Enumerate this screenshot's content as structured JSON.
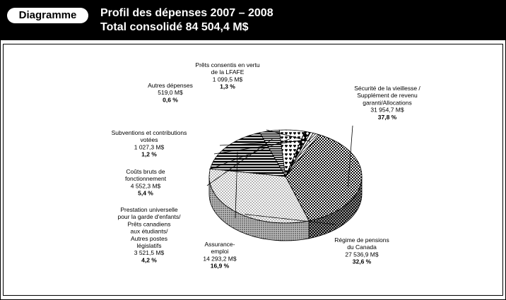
{
  "header": {
    "tag": "Diagramme",
    "title_line1": "Profil des dépenses 2007 – 2008",
    "title_line2": "Total consolidé 84 504,4 M$"
  },
  "chart_data": {
    "type": "pie",
    "title": "Profil des dépenses 2007 – 2008",
    "subtitle": "Total consolidé 84 504,4 M$",
    "unit": "M$",
    "slices": [
      {
        "label_lines": [
          "Sécurité de la vieillesse /",
          "Supplément de revenu",
          "garanti/Allocations"
        ],
        "value_text": "31 954,7 M$",
        "pct_text": "37,8 %",
        "value": 31954.7,
        "pct": 37.8,
        "pattern": "checker"
      },
      {
        "label_lines": [
          "Régime de pensions",
          "du Canada"
        ],
        "value_text": "27 536,9 M$",
        "pct_text": "32,6 %",
        "value": 27536.9,
        "pct": 32.6,
        "pattern": "dots"
      },
      {
        "label_lines": [
          "Assurance-",
          "emploi"
        ],
        "value_text": "14 293,2 M$",
        "pct_text": "16,9 %",
        "value": 14293.2,
        "pct": 16.9,
        "pattern": "hstripes"
      },
      {
        "label_lines": [
          "Prestation universelle",
          "pour la garde d'enfants/",
          "Prêts canadiens",
          "aux étudiants/",
          "Autres postes",
          "législatifs"
        ],
        "value_text": "3 521,5 M$",
        "pct_text": "4,2 %",
        "value": 3521.5,
        "pct": 4.2,
        "pattern": "hstripes-fine"
      },
      {
        "label_lines": [
          "Coûts bruts de",
          "fonctionnement"
        ],
        "value_text": "4 552,3 M$",
        "pct_text": "5,4 %",
        "value": 4552.3,
        "pct": 5.4,
        "pattern": "hearts"
      },
      {
        "label_lines": [
          "Subventions et contributions",
          "votées"
        ],
        "value_text": "1 027,3 M$",
        "pct_text": "1,2 %",
        "value": 1027.3,
        "pct": 1.2,
        "pattern": "diamonds"
      },
      {
        "label_lines": [
          "Autres dépenses"
        ],
        "value_text": "519,0 M$",
        "pct_text": "0,6 %",
        "value": 519.0,
        "pct": 0.6,
        "pattern": "white"
      },
      {
        "label_lines": [
          "Prêts consentis en vertu",
          "de la LFAFE"
        ],
        "value_text": "1 099,5 M$",
        "pct_text": "1,3 %",
        "value": 1099.5,
        "pct": 1.3,
        "pattern": "diag"
      }
    ]
  }
}
